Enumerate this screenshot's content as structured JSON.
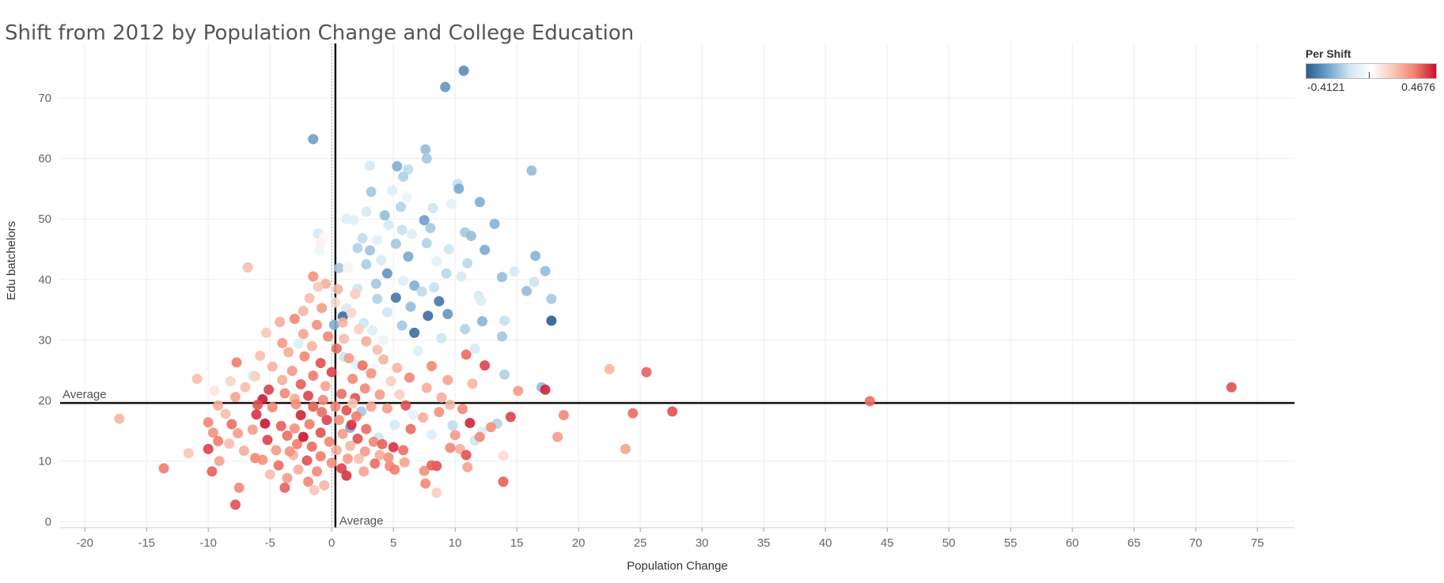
{
  "chart_data": {
    "type": "scatter",
    "title": "Shift from 2012 by Population Change and College Education",
    "xlabel": "Population Change",
    "ylabel": "Edu batchelors",
    "xlim": [
      -22,
      78
    ],
    "ylim": [
      -1,
      79
    ],
    "x_ticks": [
      -20,
      -15,
      -10,
      -5,
      0,
      5,
      10,
      15,
      20,
      25,
      30,
      35,
      40,
      45,
      50,
      55,
      60,
      65,
      70,
      75
    ],
    "y_ticks": [
      0,
      10,
      20,
      30,
      40,
      50,
      60,
      70
    ],
    "grid": true,
    "reference_lines": {
      "x_average": 0.3,
      "y_average": 19.6,
      "x_label": "Average",
      "y_label": "Average"
    },
    "color_legend": {
      "title": "Per Shift",
      "min_label": "-0.4121",
      "max_label": "0.4676",
      "min": -0.4121,
      "max": 0.4676,
      "placement": "top-right",
      "colors": [
        "#2a5b8e",
        "#6fa2cc",
        "#cfe7f3",
        "#ffffff",
        "#f9c9b8",
        "#f3826e",
        "#c8102e"
      ]
    },
    "points": [
      [
        10.7,
        74.5,
        -0.32
      ],
      [
        9.2,
        71.8,
        -0.3
      ],
      [
        -1.5,
        63.2,
        -0.28
      ],
      [
        7.6,
        61.5,
        -0.22
      ],
      [
        7.7,
        60.0,
        -0.2
      ],
      [
        16.2,
        58.0,
        -0.22
      ],
      [
        5.3,
        58.7,
        -0.25
      ],
      [
        3.1,
        58.8,
        -0.12
      ],
      [
        6.2,
        58.2,
        -0.16
      ],
      [
        5.8,
        57.0,
        -0.18
      ],
      [
        10.2,
        55.8,
        -0.15
      ],
      [
        10.3,
        55.0,
        -0.26
      ],
      [
        3.2,
        54.5,
        -0.2
      ],
      [
        4.9,
        54.7,
        -0.1
      ],
      [
        6.1,
        53.6,
        -0.06
      ],
      [
        12.0,
        52.8,
        -0.25
      ],
      [
        9.7,
        52.5,
        -0.08
      ],
      [
        5.6,
        52.0,
        -0.18
      ],
      [
        8.2,
        51.8,
        -0.14
      ],
      [
        2.8,
        51.2,
        -0.12
      ],
      [
        4.3,
        50.6,
        -0.22
      ],
      [
        7.5,
        49.8,
        -0.28
      ],
      [
        13.2,
        49.2,
        -0.24
      ],
      [
        1.2,
        50.0,
        -0.1
      ],
      [
        1.8,
        49.8,
        -0.09
      ],
      [
        8.0,
        48.5,
        -0.2
      ],
      [
        4.6,
        49.0,
        -0.12
      ],
      [
        5.7,
        48.2,
        -0.15
      ],
      [
        6.5,
        47.5,
        -0.1
      ],
      [
        10.8,
        47.8,
        -0.2
      ],
      [
        -1.1,
        47.6,
        -0.12
      ],
      [
        11.3,
        47.2,
        -0.22
      ],
      [
        2.5,
        46.8,
        -0.16
      ],
      [
        3.7,
        46.5,
        -0.09
      ],
      [
        7.7,
        46.0,
        -0.18
      ],
      [
        5.2,
        45.9,
        -0.2
      ],
      [
        9.5,
        45.0,
        -0.14
      ],
      [
        12.4,
        44.9,
        -0.26
      ],
      [
        2.1,
        45.2,
        -0.18
      ],
      [
        3.1,
        44.8,
        -0.21
      ],
      [
        16.5,
        43.9,
        -0.24
      ],
      [
        -1.0,
        44.7,
        -0.05
      ],
      [
        6.2,
        43.8,
        -0.26
      ],
      [
        4.0,
        43.2,
        -0.12
      ],
      [
        8.5,
        43.0,
        -0.08
      ],
      [
        2.8,
        42.5,
        -0.19
      ],
      [
        11.0,
        42.7,
        -0.17
      ],
      [
        17.3,
        41.4,
        -0.22
      ],
      [
        0.6,
        41.9,
        -0.2
      ],
      [
        14.8,
        41.3,
        -0.12
      ],
      [
        4.5,
        41.0,
        -0.3
      ],
      [
        9.3,
        41.0,
        -0.17
      ],
      [
        13.8,
        40.4,
        -0.22
      ],
      [
        5.8,
        39.8,
        -0.1
      ],
      [
        10.5,
        40.5,
        -0.12
      ],
      [
        16.4,
        39.6,
        -0.14
      ],
      [
        3.6,
        39.3,
        -0.2
      ],
      [
        6.7,
        39.0,
        -0.25
      ],
      [
        8.3,
        38.7,
        -0.15
      ],
      [
        15.8,
        38.1,
        -0.22
      ],
      [
        2.1,
        38.5,
        -0.14
      ],
      [
        7.3,
        38.0,
        -0.16
      ],
      [
        11.9,
        37.3,
        -0.12
      ],
      [
        5.2,
        37.0,
        -0.36
      ],
      [
        8.7,
        36.4,
        -0.36
      ],
      [
        17.8,
        36.8,
        -0.2
      ],
      [
        3.7,
        36.8,
        -0.18
      ],
      [
        12.1,
        36.5,
        -0.1
      ],
      [
        6.4,
        35.5,
        -0.22
      ],
      [
        1.2,
        35.2,
        -0.12
      ],
      [
        9.4,
        34.3,
        -0.3
      ],
      [
        4.5,
        34.6,
        -0.14
      ],
      [
        0.9,
        33.9,
        -0.38
      ],
      [
        7.8,
        34.0,
        -0.38
      ],
      [
        17.8,
        33.2,
        -0.41
      ],
      [
        14.0,
        33.2,
        -0.15
      ],
      [
        12.2,
        33.1,
        -0.24
      ],
      [
        2.6,
        32.8,
        -0.14
      ],
      [
        5.7,
        32.4,
        -0.2
      ],
      [
        10.8,
        31.8,
        -0.18
      ],
      [
        3.3,
        31.6,
        -0.1
      ],
      [
        6.7,
        31.2,
        -0.38
      ],
      [
        13.8,
        30.6,
        -0.2
      ],
      [
        8.9,
        30.3,
        -0.14
      ],
      [
        4.2,
        30.0,
        -0.06
      ],
      [
        11.6,
        28.6,
        -0.12
      ],
      [
        7.0,
        28.2,
        -0.1
      ],
      [
        14.0,
        24.3,
        -0.18
      ],
      [
        17.0,
        22.2,
        -0.22
      ],
      [
        -6.4,
        24.1,
        -0.1
      ],
      [
        9.8,
        15.9,
        -0.16
      ],
      [
        11.6,
        13.4,
        -0.14
      ],
      [
        12.2,
        14.9,
        -0.1
      ],
      [
        13.4,
        16.2,
        -0.18
      ],
      [
        2.4,
        18.2,
        -0.2
      ],
      [
        5.1,
        16.0,
        -0.12
      ],
      [
        6.6,
        17.7,
        -0.08
      ],
      [
        1.5,
        15.5,
        -0.25
      ],
      [
        3.8,
        13.9,
        -0.14
      ],
      [
        8.1,
        14.4,
        -0.1
      ],
      [
        0.2,
        32.5,
        -0.25
      ],
      [
        1.0,
        27.2,
        -0.14
      ],
      [
        2.0,
        26.0,
        -0.09
      ],
      [
        3.4,
        25.3,
        -0.05
      ],
      [
        -2.7,
        29.4,
        -0.1
      ],
      [
        -0.6,
        47.0,
        0.02
      ],
      [
        -0.9,
        46.0,
        0.04
      ],
      [
        0.8,
        44.6,
        0.01
      ],
      [
        1.3,
        42.0,
        0.04
      ],
      [
        -6.8,
        42.0,
        0.18
      ],
      [
        -1.5,
        40.5,
        0.28
      ],
      [
        -0.5,
        39.3,
        0.22
      ],
      [
        -1.1,
        38.8,
        0.16
      ],
      [
        0.5,
        38.4,
        0.2
      ],
      [
        1.9,
        37.6,
        0.14
      ],
      [
        -1.8,
        36.9,
        0.18
      ],
      [
        0.3,
        36.2,
        0.1
      ],
      [
        -0.8,
        35.3,
        0.25
      ],
      [
        -2.3,
        34.8,
        0.2
      ],
      [
        1.6,
        34.5,
        0.12
      ],
      [
        -3.0,
        33.5,
        0.3
      ],
      [
        -4.2,
        33.0,
        0.22
      ],
      [
        0.9,
        32.9,
        0.2
      ],
      [
        -1.2,
        32.5,
        0.28
      ],
      [
        2.2,
        31.8,
        0.14
      ],
      [
        -5.3,
        31.2,
        0.16
      ],
      [
        -2.3,
        31.0,
        0.24
      ],
      [
        -0.3,
        30.6,
        0.3
      ],
      [
        1.0,
        30.2,
        0.18
      ],
      [
        2.8,
        29.8,
        0.22
      ],
      [
        -4.0,
        29.5,
        0.26
      ],
      [
        -1.6,
        29.0,
        0.2
      ],
      [
        0.4,
        28.6,
        0.34
      ],
      [
        3.7,
        28.4,
        0.18
      ],
      [
        -3.5,
        28.0,
        0.22
      ],
      [
        -5.8,
        27.4,
        0.18
      ],
      [
        -2.2,
        27.3,
        0.3
      ],
      [
        1.4,
        27.0,
        0.26
      ],
      [
        4.2,
        26.8,
        0.2
      ],
      [
        -7.7,
        26.3,
        0.32
      ],
      [
        -0.9,
        26.2,
        0.38
      ],
      [
        -4.8,
        25.6,
        0.2
      ],
      [
        2.5,
        25.8,
        0.34
      ],
      [
        5.3,
        25.4,
        0.2
      ],
      [
        -3.2,
        24.9,
        0.26
      ],
      [
        0.0,
        24.7,
        0.4
      ],
      [
        3.2,
        24.5,
        0.28
      ],
      [
        -6.2,
        24.0,
        0.14
      ],
      [
        -1.5,
        24.1,
        0.32
      ],
      [
        -10.9,
        23.6,
        0.18
      ],
      [
        -8.2,
        23.2,
        0.12
      ],
      [
        -4.0,
        23.4,
        0.22
      ],
      [
        1.7,
        23.6,
        0.3
      ],
      [
        4.8,
        23.2,
        0.14
      ],
      [
        -2.5,
        22.7,
        0.36
      ],
      [
        -7.0,
        22.2,
        0.18
      ],
      [
        -0.5,
        22.4,
        0.24
      ],
      [
        2.7,
        22.0,
        0.3
      ],
      [
        -5.1,
        21.8,
        0.4
      ],
      [
        -9.5,
        21.6,
        0.08
      ],
      [
        -3.8,
        21.2,
        0.3
      ],
      [
        0.8,
        21.1,
        0.34
      ],
      [
        3.9,
        21.0,
        0.26
      ],
      [
        -1.9,
        20.8,
        0.4
      ],
      [
        -7.8,
        20.6,
        0.24
      ],
      [
        -5.6,
        20.2,
        0.46
      ],
      [
        -3.0,
        20.3,
        0.22
      ],
      [
        -0.7,
        20.1,
        0.3
      ],
      [
        1.9,
        20.4,
        0.38
      ],
      [
        8.1,
        25.7,
        0.3
      ],
      [
        10.9,
        27.6,
        0.34
      ],
      [
        12.4,
        25.8,
        0.4
      ],
      [
        9.4,
        23.4,
        0.24
      ],
      [
        11.4,
        22.8,
        0.2
      ],
      [
        6.3,
        23.8,
        0.3
      ],
      [
        7.7,
        22.1,
        0.22
      ],
      [
        5.5,
        21.0,
        0.14
      ],
      [
        8.9,
        20.5,
        0.22
      ],
      [
        15.1,
        21.6,
        0.26
      ],
      [
        17.3,
        21.8,
        0.44
      ],
      [
        22.5,
        25.2,
        0.2
      ],
      [
        25.5,
        24.7,
        0.36
      ],
      [
        43.6,
        19.9,
        0.34
      ],
      [
        72.9,
        22.2,
        0.38
      ],
      [
        18.8,
        17.6,
        0.3
      ],
      [
        24.4,
        17.9,
        0.34
      ],
      [
        27.6,
        18.2,
        0.38
      ],
      [
        18.3,
        14.0,
        0.26
      ],
      [
        23.8,
        12.0,
        0.24
      ],
      [
        -17.2,
        17.0,
        0.2
      ],
      [
        -11.6,
        11.3,
        0.16
      ],
      [
        -13.6,
        8.8,
        0.32
      ],
      [
        -9.7,
        8.3,
        0.36
      ],
      [
        -7.5,
        5.6,
        0.3
      ],
      [
        -7.8,
        2.8,
        0.38
      ],
      [
        -9.2,
        19.2,
        0.22
      ],
      [
        -8.6,
        17.8,
        0.18
      ],
      [
        -10.0,
        16.4,
        0.3
      ],
      [
        -8.1,
        16.1,
        0.34
      ],
      [
        -9.6,
        14.7,
        0.28
      ],
      [
        -7.6,
        14.6,
        0.26
      ],
      [
        -9.2,
        13.3,
        0.32
      ],
      [
        -8.3,
        12.9,
        0.18
      ],
      [
        -10.0,
        12.0,
        0.4
      ],
      [
        -7.1,
        11.7,
        0.22
      ],
      [
        -9.1,
        10.0,
        0.24
      ],
      [
        -6.2,
        10.5,
        0.3
      ],
      [
        -4.8,
        18.9,
        0.3
      ],
      [
        -6.1,
        17.7,
        0.42
      ],
      [
        -5.4,
        16.2,
        0.46
      ],
      [
        -4.1,
        15.8,
        0.36
      ],
      [
        -6.4,
        15.2,
        0.26
      ],
      [
        -3.6,
        14.2,
        0.34
      ],
      [
        -5.2,
        13.5,
        0.4
      ],
      [
        -2.8,
        12.8,
        0.32
      ],
      [
        -4.5,
        11.8,
        0.26
      ],
      [
        -3.1,
        11.0,
        0.2
      ],
      [
        -5.6,
        10.2,
        0.28
      ],
      [
        -2.0,
        10.1,
        0.38
      ],
      [
        -4.3,
        9.3,
        0.34
      ],
      [
        -2.7,
        8.6,
        0.22
      ],
      [
        -1.2,
        8.3,
        0.3
      ],
      [
        -5.0,
        7.8,
        0.18
      ],
      [
        -3.6,
        7.2,
        0.26
      ],
      [
        -1.9,
        6.6,
        0.3
      ],
      [
        -0.6,
        6.0,
        0.2
      ],
      [
        -3.8,
        5.6,
        0.36
      ],
      [
        -1.4,
        5.2,
        0.16
      ],
      [
        0.0,
        9.7,
        0.28
      ],
      [
        -1.5,
        19.0,
        0.36
      ],
      [
        -2.5,
        17.6,
        0.44
      ],
      [
        -0.4,
        16.8,
        0.4
      ],
      [
        -1.8,
        16.1,
        0.32
      ],
      [
        -3.0,
        15.4,
        0.28
      ],
      [
        -0.9,
        14.7,
        0.38
      ],
      [
        -2.3,
        14.0,
        0.46
      ],
      [
        -0.2,
        13.2,
        0.3
      ],
      [
        -1.6,
        12.4,
        0.34
      ],
      [
        -3.4,
        11.6,
        0.28
      ],
      [
        0.4,
        11.8,
        0.22
      ],
      [
        -0.9,
        10.8,
        0.32
      ],
      [
        1.3,
        10.4,
        0.26
      ],
      [
        0.8,
        8.8,
        0.4
      ],
      [
        1.2,
        7.6,
        0.42
      ],
      [
        0.3,
        19.0,
        0.3
      ],
      [
        1.2,
        18.4,
        0.38
      ],
      [
        2.0,
        17.4,
        0.32
      ],
      [
        0.6,
        16.8,
        0.28
      ],
      [
        1.6,
        16.0,
        0.42
      ],
      [
        2.8,
        15.3,
        0.34
      ],
      [
        0.9,
        14.5,
        0.26
      ],
      [
        2.1,
        13.7,
        0.38
      ],
      [
        3.4,
        13.2,
        0.3
      ],
      [
        1.5,
        12.5,
        0.2
      ],
      [
        2.7,
        11.6,
        0.26
      ],
      [
        3.9,
        11.0,
        0.22
      ],
      [
        2.2,
        10.4,
        0.18
      ],
      [
        3.5,
        9.6,
        0.34
      ],
      [
        4.7,
        9.2,
        0.3
      ],
      [
        2.6,
        8.3,
        0.24
      ],
      [
        4.1,
        12.8,
        0.36
      ],
      [
        5.0,
        12.3,
        0.42
      ],
      [
        5.8,
        11.8,
        0.34
      ],
      [
        4.6,
        10.6,
        0.28
      ],
      [
        5.9,
        9.8,
        0.24
      ],
      [
        5.1,
        8.6,
        0.32
      ],
      [
        7.5,
        8.4,
        0.28
      ],
      [
        8.5,
        9.2,
        0.38
      ],
      [
        8.1,
        9.3,
        0.36
      ],
      [
        7.6,
        6.3,
        0.3
      ],
      [
        8.5,
        4.8,
        0.14
      ],
      [
        10.0,
        14.3,
        0.26
      ],
      [
        10.4,
        12.0,
        0.22
      ],
      [
        10.9,
        11.0,
        0.38
      ],
      [
        11.0,
        9.0,
        0.24
      ],
      [
        12.0,
        14.0,
        0.3
      ],
      [
        11.2,
        16.3,
        0.44
      ],
      [
        12.9,
        15.6,
        0.28
      ],
      [
        14.5,
        17.3,
        0.4
      ],
      [
        13.9,
        10.9,
        0.1
      ],
      [
        13.9,
        6.6,
        0.36
      ],
      [
        9.6,
        12.2,
        0.3
      ],
      [
        6.4,
        15.3,
        0.34
      ],
      [
        7.4,
        17.2,
        0.22
      ],
      [
        8.7,
        18.1,
        0.28
      ],
      [
        4.5,
        18.7,
        0.26
      ],
      [
        6.0,
        19.2,
        0.38
      ],
      [
        3.2,
        19.0,
        0.24
      ],
      [
        9.6,
        19.3,
        0.2
      ],
      [
        10.6,
        18.6,
        0.3
      ],
      [
        -6.0,
        19.3,
        0.38
      ],
      [
        -2.9,
        19.4,
        0.28
      ],
      [
        -0.8,
        18.1,
        0.34
      ],
      [
        1.7,
        19.5,
        0.16
      ]
    ]
  }
}
